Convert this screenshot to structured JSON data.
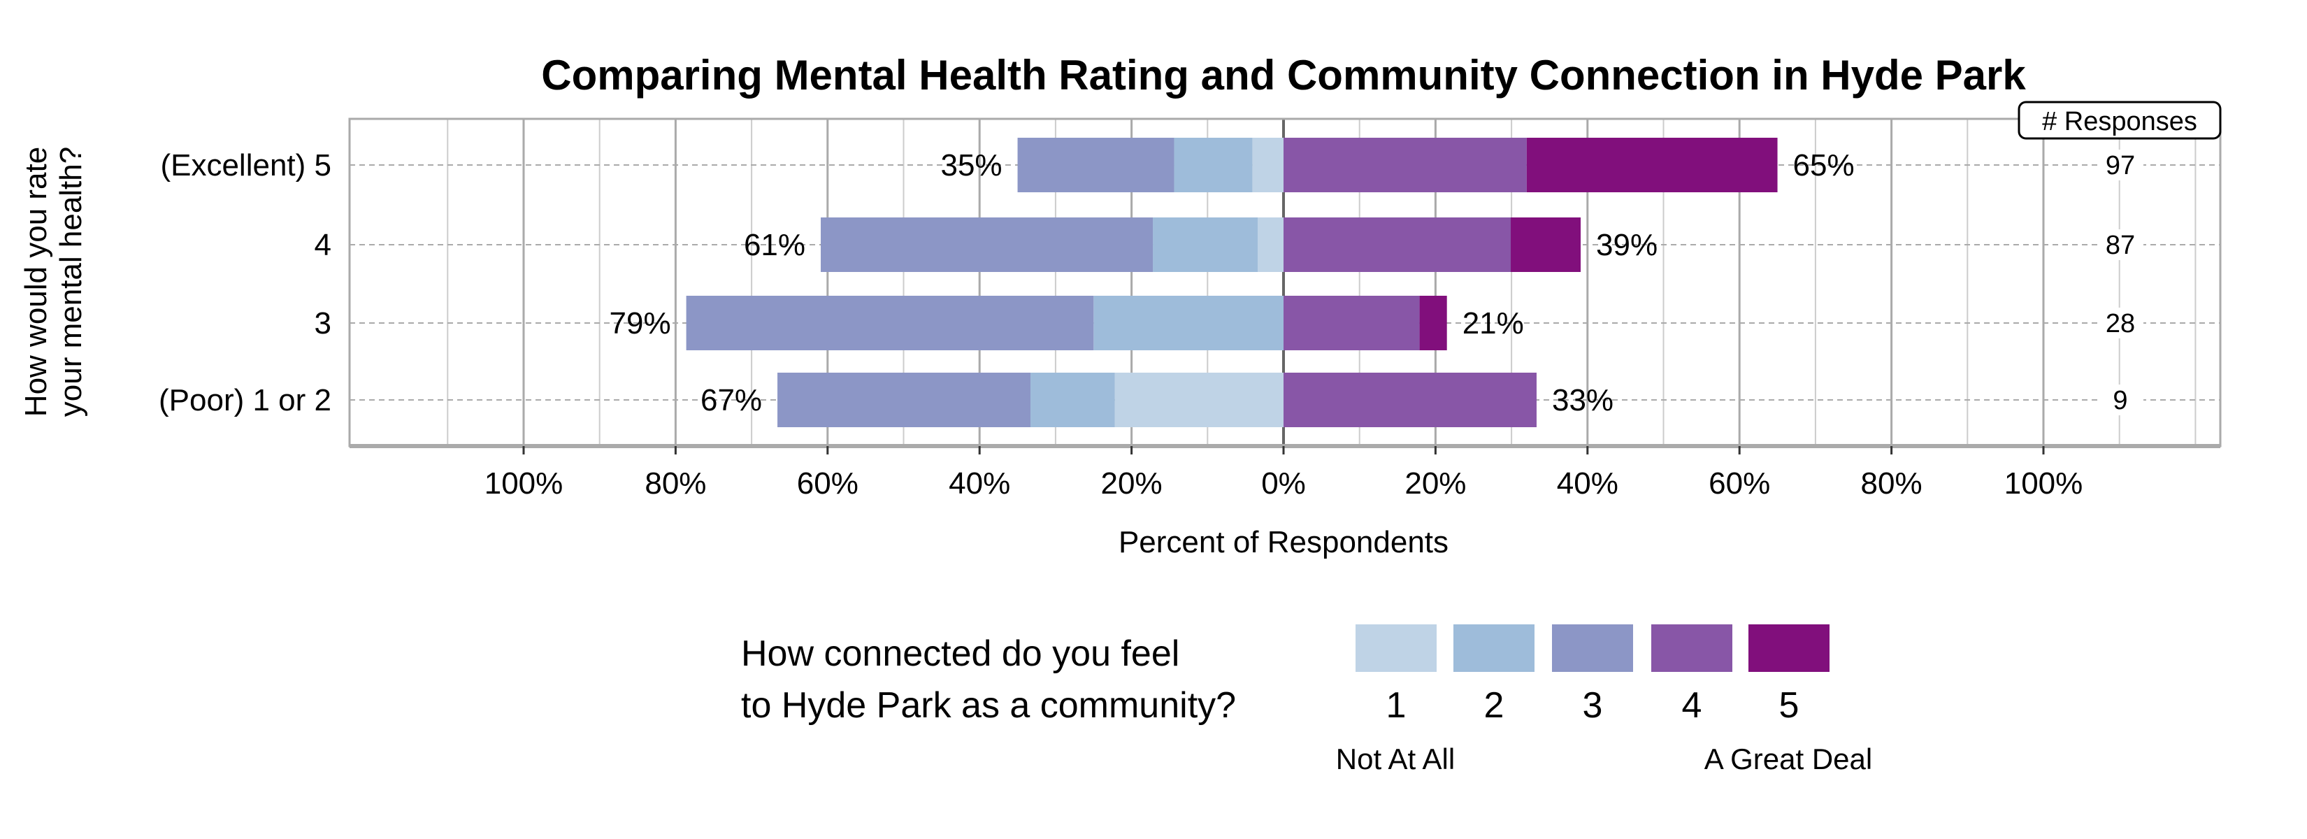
{
  "chart_data": {
    "type": "bar",
    "orientation": "horizontal",
    "stacking": "diverging",
    "title": "Comparing Mental Health Rating and Community Connection in Hyde Park",
    "xlabel": "Percent of Respondents",
    "ylabel": "How would you rate your mental health?",
    "xlim": [
      -100,
      100
    ],
    "xticks": [
      "100%",
      "80%",
      "60%",
      "40%",
      "20%",
      "0%",
      "20%",
      "40%",
      "60%",
      "80%",
      "100%"
    ],
    "grid": true,
    "categories": [
      "(Excellent) 5",
      "4",
      "3",
      "(Poor) 1 or 2"
    ],
    "left_totals": [
      "35%",
      "61%",
      "79%",
      "67%"
    ],
    "right_totals": [
      "65%",
      "39%",
      "21%",
      "33%"
    ],
    "responses_header": "# Responses",
    "responses": [
      "97",
      "87",
      "28",
      "9"
    ],
    "series": [
      {
        "name": "1",
        "side": "left",
        "color": "#bfd3e6",
        "values": [
          4.1,
          3.4,
          0,
          22.2
        ]
      },
      {
        "name": "2",
        "side": "left",
        "color": "#9ebcda",
        "values": [
          10.3,
          13.8,
          25.0,
          11.1
        ]
      },
      {
        "name": "3",
        "side": "left",
        "color": "#8c96c6",
        "values": [
          20.6,
          43.7,
          53.6,
          33.3
        ]
      },
      {
        "name": "4",
        "side": "right",
        "color": "#8856a7",
        "values": [
          32.0,
          29.9,
          17.9,
          33.3
        ]
      },
      {
        "name": "5",
        "side": "right",
        "color": "#810f7c",
        "values": [
          33.0,
          9.2,
          3.6,
          0
        ]
      }
    ],
    "legend": {
      "title_lines": [
        "How connected do you feel",
        "to Hyde Park as a community?"
      ],
      "labels": [
        "1",
        "2",
        "3",
        "4",
        "5"
      ],
      "low_label": "Not At All",
      "high_label": "A Great Deal",
      "placement": "bottom"
    }
  }
}
